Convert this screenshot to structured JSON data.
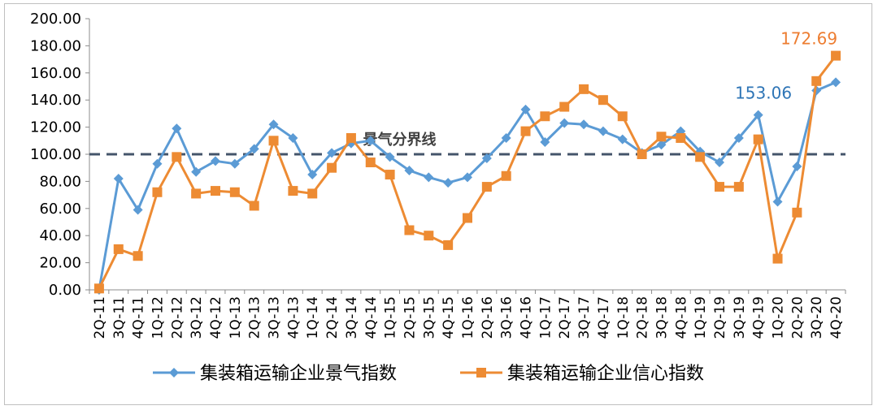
{
  "chart_data": {
    "type": "line",
    "categories": [
      "2Q-11",
      "3Q-11",
      "4Q-11",
      "1Q-12",
      "2Q-12",
      "3Q-12",
      "4Q-12",
      "1Q-13",
      "2Q-13",
      "3Q-13",
      "4Q-13",
      "1Q-14",
      "2Q-14",
      "3Q-14",
      "4Q-14",
      "1Q-15",
      "2Q-15",
      "3Q-15",
      "4Q-15",
      "1Q-16",
      "2Q-16",
      "3Q-16",
      "4Q-16",
      "1Q-17",
      "2Q-17",
      "3Q-17",
      "4Q-17",
      "1Q-18",
      "2Q-18",
      "3Q-18",
      "4Q-18",
      "1Q-19",
      "2Q-19",
      "3Q-19",
      "4Q-19",
      "1Q-20",
      "2Q-20",
      "3Q-20",
      "4Q-20"
    ],
    "series": [
      {
        "name": "集装箱运输企业景气指数",
        "color": "#5B9BD5",
        "marker": "diamond",
        "values": [
          0,
          82,
          59,
          93,
          119,
          87,
          95,
          93,
          104,
          122,
          112,
          85,
          101,
          108,
          110,
          98,
          88,
          83,
          79,
          83,
          97,
          112,
          133,
          109,
          123,
          122,
          117,
          111,
          101,
          107,
          117,
          102,
          94,
          112,
          129,
          65,
          91,
          147,
          153.06
        ]
      },
      {
        "name": "集装箱运输企业信心指数",
        "color": "#ED8B33",
        "marker": "square",
        "values": [
          1,
          30,
          25,
          72,
          98,
          71,
          73,
          72,
          62,
          110,
          73,
          71,
          90,
          112,
          94,
          85,
          44,
          40,
          33,
          53,
          76,
          84,
          117,
          128,
          135,
          148,
          140,
          128,
          100,
          113,
          112,
          98,
          76,
          76,
          111,
          23,
          57,
          154,
          172.69
        ]
      }
    ],
    "ylim": [
      0,
      200
    ],
    "yticks": [
      "0.00",
      "20.00",
      "40.00",
      "60.00",
      "80.00",
      "100.00",
      "120.00",
      "140.00",
      "160.00",
      "180.00",
      "200.00"
    ],
    "reference_line": {
      "value": 100,
      "label": "景气分界线",
      "color": "#44546A"
    },
    "annotations": [
      {
        "text": "153.06",
        "series": 0,
        "index": 38,
        "color": "#2E75B6"
      },
      {
        "text": "172.69",
        "series": 1,
        "index": 38,
        "color": "#ED7D31"
      }
    ],
    "legend": "bottom",
    "grid": false
  }
}
